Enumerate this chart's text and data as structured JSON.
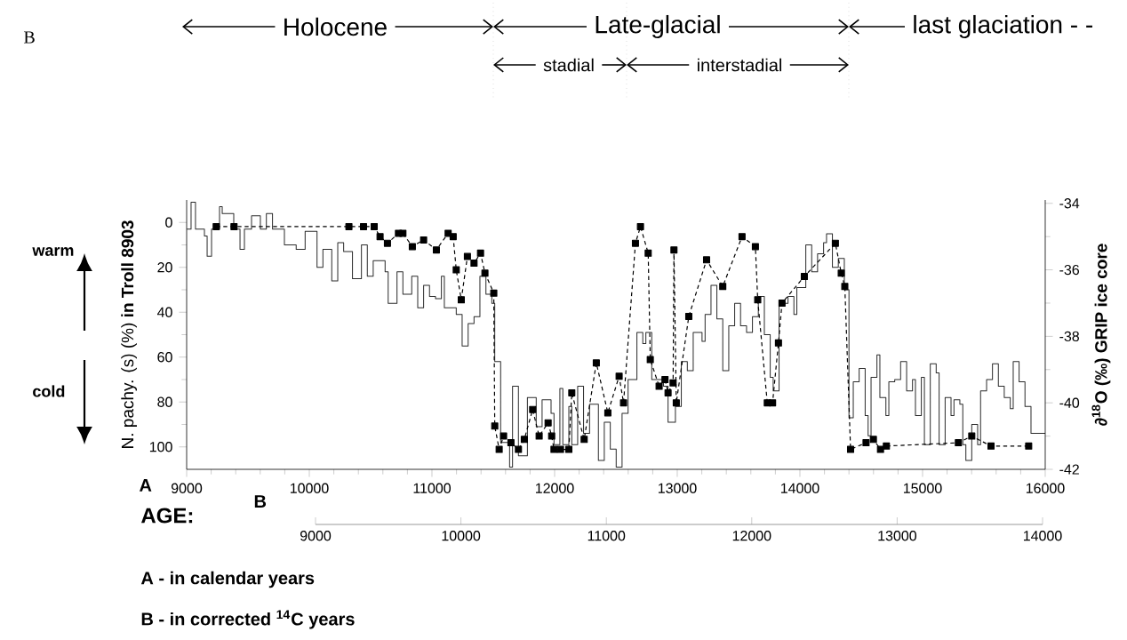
{
  "chart_data": {
    "type": "line",
    "xlabel": "A",
    "ylabel": "N. pachy. (s) (%) **in Troll 8903**",
    "y2label": "∂$^{18}$O (‰) GRIP ice core",
    "x2label": "B",
    "xlim": [
      9000,
      16000
    ],
    "xticks": [
      9000,
      10000,
      11000,
      12000,
      13000,
      14000,
      15000,
      16000
    ],
    "ylim": [
      110,
      -10
    ],
    "yticks": [
      0,
      20,
      40,
      60,
      80,
      100
    ],
    "y2lim": [
      -42,
      -33.9
    ],
    "y2ticks": [
      -42,
      -40,
      -38,
      -36,
      -34
    ],
    "x2lim": [
      9000,
      14000
    ],
    "x2ticks": [
      9000,
      10000,
      11000,
      12000,
      13000,
      14000
    ],
    "annotations": [
      "B",
      "Holocene",
      "Late-glacial",
      "last glaciation - -",
      "stadial",
      "interstadial",
      "warm",
      "cold",
      "AGE:",
      "A - in calendar years",
      "B - in corrected $^{14}$C years"
    ],
    "series": [
      {
        "type": "step",
        "color": "#2b2b2b",
        "x": [
          9000,
          9036,
          9072,
          9145,
          9167,
          9203,
          9268,
          9290,
          9384,
          9435,
          9471,
          9529,
          9601,
          9650,
          9700,
          9797,
          9893,
          9966,
          10063,
          10111,
          10183,
          10232,
          10280,
          10352,
          10425,
          10473,
          10521,
          10618,
          10643,
          10715,
          10763,
          10835,
          10884,
          10932,
          10980,
          11029,
          11077,
          11101,
          11198,
          11246,
          11295,
          11343,
          11391,
          11440,
          11488,
          11512,
          11560,
          11633,
          11657,
          11705,
          11778,
          11850,
          11898,
          11971,
          11995,
          12043,
          12067,
          12116,
          12140,
          12188,
          12236,
          12285,
          12357,
          12405,
          12454,
          12502,
          12550,
          12599,
          12671,
          12719,
          12744,
          12792,
          12888,
          12925,
          12985,
          13033,
          13082,
          13130,
          13202,
          13227,
          13275,
          13323,
          13371,
          13420,
          13468,
          13516,
          13565,
          13613,
          13661,
          13710,
          13758,
          13782,
          13830,
          13903,
          13951,
          13975,
          14048,
          14096,
          14144,
          14193,
          14217,
          14265,
          14313,
          14362,
          14400,
          14435,
          14483,
          14532,
          14556,
          14580,
          14628,
          14652,
          14701,
          14725,
          14773,
          14821,
          14870,
          14918,
          14942,
          14990,
          15015,
          15063,
          15111,
          15135,
          15184,
          15232,
          15256,
          15304,
          15328,
          15353,
          15401,
          15449,
          15473,
          15522,
          15570,
          15618,
          15666,
          15715,
          15739,
          15787,
          15835,
          15884,
          16000
        ],
        "values": [
          3,
          -9,
          3,
          6,
          15,
          3,
          -7,
          -4,
          3,
          12,
          3,
          -3,
          3,
          -4,
          3,
          10,
          12,
          4,
          20,
          12,
          26,
          9,
          13,
          25,
          10,
          24,
          17,
          22,
          36,
          22,
          32,
          24,
          38,
          28,
          33,
          34,
          24,
          38,
          41,
          55,
          45,
          42,
          24,
          32,
          36,
          62,
          98,
          109,
          73,
          104,
          78,
          91,
          79,
          85,
          99,
          74,
          99,
          82,
          99,
          73,
          94,
          81,
          106,
          89,
          101,
          109,
          85,
          70,
          49,
          54,
          49,
          70,
          73,
          89,
          82,
          62,
          66,
          49,
          53,
          41,
          28,
          43,
          66,
          46,
          36,
          46,
          49,
          42,
          33,
          50,
          69,
          75,
          36,
          33,
          41,
          29,
          10,
          22,
          14,
          9,
          5,
          20,
          16,
          30,
          87,
          71,
          65,
          86,
          95,
          69,
          59,
          78,
          86,
          71,
          70,
          62,
          75,
          70,
          86,
          69,
          99,
          63,
          67,
          99,
          78,
          86,
          79,
          81,
          99,
          106,
          90,
          99,
          75,
          70,
          63,
          73,
          78,
          83,
          62,
          71,
          82,
          94,
          94
        ]
      },
      {
        "type": "line",
        "axis": "y2",
        "color": "#000000",
        "marker": "square",
        "line_style": "dashed",
        "x": [
          9241,
          9386,
          10323,
          10442,
          10529,
          10577,
          10637,
          10727,
          10763,
          10840,
          10932,
          11036,
          11132,
          11173,
          11198,
          11239,
          11289,
          11343,
          11396,
          11432,
          11504,
          11512,
          11548,
          11584,
          11644,
          11705,
          11753,
          11821,
          11874,
          11947,
          11976,
          11995,
          12048,
          12116,
          12140,
          12241,
          12340,
          12434,
          12526,
          12562,
          12659,
          12700,
          12763,
          12780,
          12852,
          12900,
          12925,
          12966,
          12973,
          12992,
          13094,
          13239,
          13371,
          13528,
          13637,
          13656,
          13734,
          13777,
          13825,
          13854,
          14036,
          14289,
          14337,
          14366,
          14413,
          14539,
          14599,
          14657,
          14705,
          15292,
          15401,
          15558,
          15865
        ],
        "values": [
          -34.7,
          -34.7,
          -34.7,
          -34.7,
          -34.7,
          -35.0,
          -35.2,
          -34.9,
          -34.9,
          -35.3,
          -35.1,
          -35.4,
          -34.9,
          -35.0,
          -36.0,
          -36.9,
          -35.6,
          -35.8,
          -35.5,
          -36.1,
          -36.7,
          -40.7,
          -41.4,
          -41.0,
          -41.2,
          -41.4,
          -41.1,
          -40.2,
          -41.0,
          -40.6,
          -41.0,
          -41.4,
          -41.4,
          -41.4,
          -39.7,
          -41.1,
          -38.8,
          -40.3,
          -39.2,
          -40.0,
          -35.2,
          -34.7,
          -35.5,
          -38.7,
          -39.5,
          -39.3,
          -39.7,
          -39.4,
          -35.4,
          -40.0,
          -37.4,
          -35.7,
          -36.5,
          -35.0,
          -35.3,
          -36.9,
          -40.0,
          -40.0,
          -38.2,
          -37.0,
          -36.2,
          -35.2,
          -36.1,
          -36.5,
          -41.4,
          -41.2,
          -41.1,
          -41.4,
          -41.3,
          -41.2,
          -41.0,
          -41.3,
          -41.3
        ]
      }
    ]
  }
}
